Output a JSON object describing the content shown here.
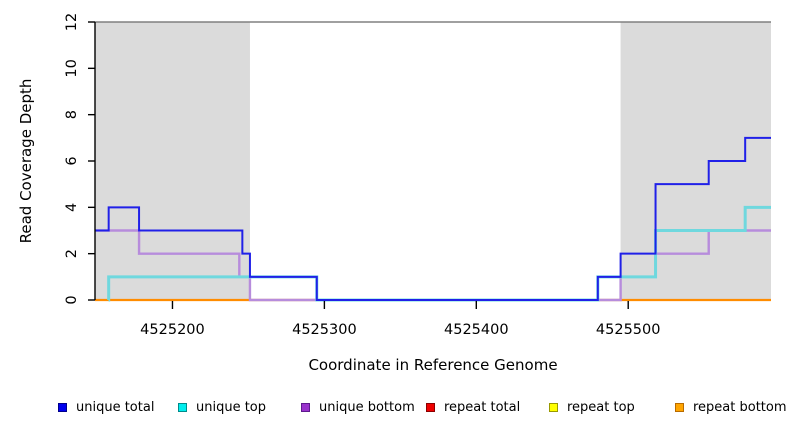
{
  "chart_data": {
    "type": "line",
    "subtype": "step-coverage",
    "xlabel": "Coordinate in Reference Genome",
    "ylabel": "Read Coverage Depth",
    "xlim": [
      4525149,
      4525594
    ],
    "ylim": [
      0,
      12
    ],
    "x_ticks": [
      4525200,
      4525300,
      4525400,
      4525500
    ],
    "y_ticks": [
      0,
      2,
      4,
      6,
      8,
      10,
      12
    ],
    "grid": false,
    "shade_color": "#dbdbdb",
    "shaded_regions": [
      {
        "from": 4525149,
        "to": 4525251
      },
      {
        "from": 4525495,
        "to": 4525594
      }
    ],
    "top_boundary_line": {
      "y": 12,
      "color": "#808080"
    },
    "x_end": 4525594,
    "series": [
      {
        "name": "repeat top",
        "color": "#ffff00",
        "legend_fill": "#ffff00",
        "legend_border": "#999900",
        "width": 2,
        "points": [
          [
            4525149,
            0
          ]
        ]
      },
      {
        "name": "repeat total",
        "color": "#dd2233",
        "legend_fill": "#ee0000",
        "legend_border": "#8b0000",
        "width": 2,
        "points": [
          [
            4525149,
            0
          ]
        ]
      },
      {
        "name": "repeat bottom",
        "color": "#ff8c00",
        "legend_fill": "#ffa500",
        "legend_border": "#b86b00",
        "width": 2.2,
        "points": [
          [
            4525149,
            0
          ]
        ]
      },
      {
        "name": "unique bottom",
        "color": "#b78cdc",
        "legend_fill": "#9932cc",
        "legend_border": "#5e1a8e",
        "width": 2.4,
        "points": [
          [
            4525149,
            3
          ],
          [
            4525178,
            2
          ],
          [
            4525244,
            1
          ],
          [
            4525251,
            0
          ],
          [
            4525495,
            1
          ],
          [
            4525518,
            2
          ],
          [
            4525553,
            3
          ]
        ]
      },
      {
        "name": "unique top",
        "color": "#6fd8de",
        "legend_fill": "#00eeee",
        "legend_border": "#008b8b",
        "width": 3,
        "points": [
          [
            4525157.9,
            0
          ],
          [
            4525158,
            1
          ],
          [
            4525295,
            0
          ],
          [
            4525480,
            1
          ],
          [
            4525518,
            3
          ],
          [
            4525577,
            4
          ]
        ]
      },
      {
        "name": "unique total",
        "color": "#2020e8",
        "legend_fill": "#0000ee",
        "legend_border": "#00008b",
        "width": 2,
        "points": [
          [
            4525149,
            3
          ],
          [
            4525158,
            4
          ],
          [
            4525178,
            3
          ],
          [
            4525246,
            2
          ],
          [
            4525251,
            1
          ],
          [
            4525295,
            0
          ],
          [
            4525480,
            1
          ],
          [
            4525495,
            2
          ],
          [
            4525518,
            5
          ],
          [
            4525553,
            6
          ],
          [
            4525577,
            7
          ]
        ]
      }
    ],
    "legend_order": [
      "unique total",
      "unique top",
      "unique bottom",
      "repeat total",
      "repeat top",
      "repeat bottom"
    ]
  }
}
